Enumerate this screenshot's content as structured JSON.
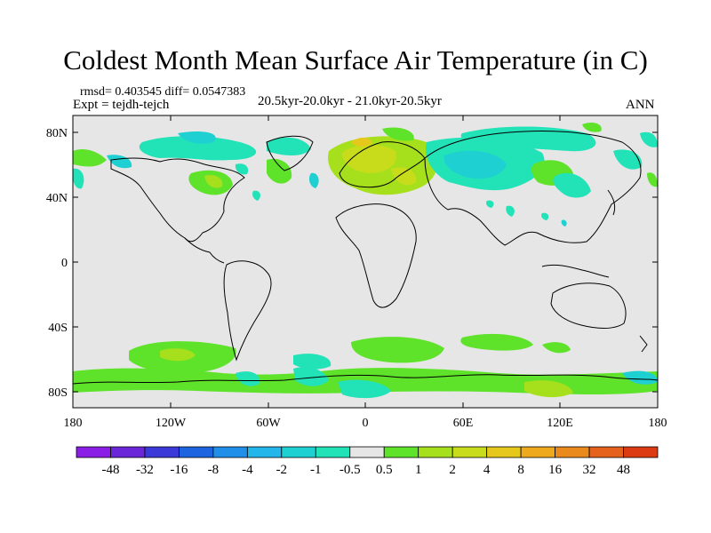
{
  "title": "Coldest Month Mean Surface Air Temperature (in C)",
  "stats_line": "rmsd= 0.403545 diff= 0.0547383",
  "experiment_line": "Expt = tejdh-tejch",
  "period_line": "20.5kyr-20.0kyr - 21.0kyr-20.5kyr",
  "season_label": "ANN",
  "y_axis": {
    "ticks": [
      "80N",
      "40N",
      "0",
      "40S",
      "80S"
    ]
  },
  "x_axis": {
    "ticks": [
      "180",
      "120W",
      "60W",
      "0",
      "60E",
      "120E",
      "180"
    ]
  },
  "colorbar": {
    "labels": [
      "-48",
      "-32",
      "-16",
      "-8",
      "-4",
      "-2",
      "-1",
      "-0.5",
      "0.5",
      "1",
      "2",
      "4",
      "8",
      "16",
      "32",
      "48"
    ],
    "colors": [
      "#8a1de6",
      "#6a26d8",
      "#3b3ad8",
      "#1d64e0",
      "#1f8fea",
      "#22b6ea",
      "#1ed0d2",
      "#22e2b8",
      "#e6e6e6",
      "#5fe22a",
      "#a6e01c",
      "#c8dc1c",
      "#e6c81c",
      "#eeaa1c",
      "#ea8a1c",
      "#e4621c",
      "#dc3a12"
    ]
  },
  "colors": {
    "land_background": "#e6e6e6",
    "coastline": "#000000"
  }
}
